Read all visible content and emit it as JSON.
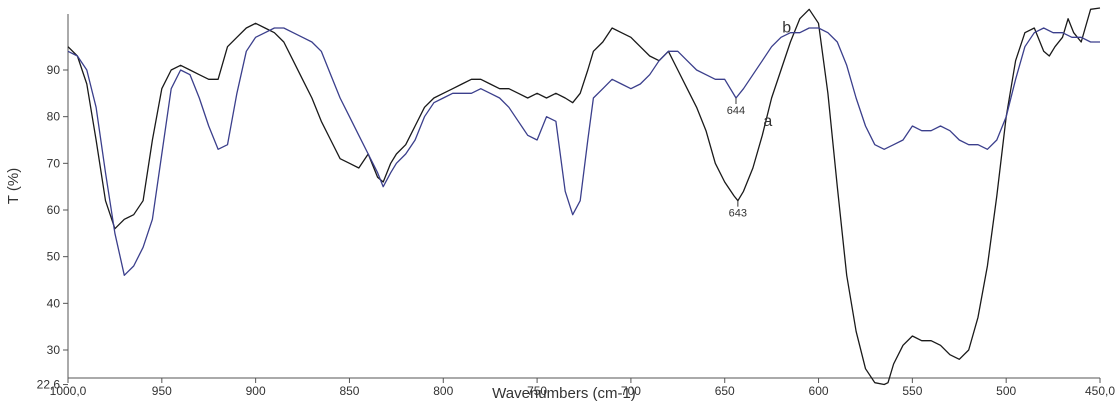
{
  "chart_data": {
    "type": "line",
    "title": "",
    "xlabel": "Wavenumbers (cm-1)",
    "ylabel": "T (%)",
    "xlim": [
      1000,
      450
    ],
    "ylim": [
      22.6,
      100
    ],
    "x_ticks": [
      {
        "value": 1000,
        "label": "1000,0"
      },
      {
        "value": 950,
        "label": "950"
      },
      {
        "value": 900,
        "label": "900"
      },
      {
        "value": 850,
        "label": "850"
      },
      {
        "value": 800,
        "label": "800"
      },
      {
        "value": 750,
        "label": "750"
      },
      {
        "value": 700,
        "label": "700"
      },
      {
        "value": 650,
        "label": "650"
      },
      {
        "value": 600,
        "label": "600"
      },
      {
        "value": 550,
        "label": "550"
      },
      {
        "value": 500,
        "label": "500"
      },
      {
        "value": 450,
        "label": "450,0"
      }
    ],
    "y_ticks": [
      {
        "value": 22.6,
        "label": "22,6"
      },
      {
        "value": 30,
        "label": "30"
      },
      {
        "value": 40,
        "label": "40"
      },
      {
        "value": 50,
        "label": "50"
      },
      {
        "value": 60,
        "label": "60"
      },
      {
        "value": 70,
        "label": "70"
      },
      {
        "value": 80,
        "label": "80"
      },
      {
        "value": 90,
        "label": "90"
      }
    ],
    "series": [
      {
        "name": "a",
        "color": "#1a1a1a",
        "x": [
          1000,
          995,
          990,
          985,
          980,
          975,
          970,
          965,
          960,
          955,
          950,
          945,
          940,
          935,
          930,
          925,
          920,
          915,
          910,
          905,
          900,
          895,
          890,
          885,
          880,
          875,
          870,
          865,
          860,
          855,
          850,
          845,
          840,
          835,
          832,
          828,
          825,
          820,
          815,
          810,
          805,
          800,
          795,
          790,
          785,
          780,
          775,
          770,
          765,
          760,
          755,
          750,
          745,
          740,
          735,
          731,
          727,
          723,
          720,
          715,
          710,
          705,
          700,
          695,
          690,
          685,
          680,
          675,
          670,
          665,
          660,
          655,
          650,
          645,
          643,
          640,
          635,
          630,
          625,
          620,
          615,
          610,
          605,
          600,
          595,
          590,
          585,
          580,
          575,
          570,
          565,
          563,
          560,
          555,
          550,
          545,
          540,
          535,
          530,
          525,
          520,
          515,
          510,
          505,
          500,
          495,
          490,
          485,
          480,
          477,
          474,
          470,
          467,
          464,
          460,
          455,
          450
        ],
        "y": [
          95,
          93,
          87,
          75,
          62,
          56,
          58,
          59,
          62,
          75,
          86,
          90,
          91,
          90,
          89,
          88,
          88,
          95,
          97,
          99,
          100,
          99,
          98,
          96,
          92,
          88,
          84,
          79,
          75,
          71,
          70,
          69,
          72,
          67,
          66,
          70,
          72,
          74,
          78,
          82,
          84,
          85,
          86,
          87,
          88,
          88,
          87,
          86,
          86,
          85,
          84,
          85,
          84,
          85,
          84,
          83,
          85,
          90,
          94,
          96,
          99,
          98,
          97,
          95,
          93,
          92,
          94,
          90,
          86,
          82,
          77,
          70,
          66,
          63,
          62,
          64,
          69,
          76,
          84,
          90,
          96,
          101,
          103,
          100,
          85,
          65,
          46,
          34,
          26,
          23,
          22.6,
          23,
          27,
          31,
          33,
          32,
          32,
          31,
          29,
          28,
          30,
          37,
          48,
          63,
          80,
          92,
          98,
          99,
          94,
          93,
          95,
          97,
          101,
          98,
          96,
          103,
          104
        ]
      },
      {
        "name": "b",
        "color": "#3b3f8c",
        "x": [
          1000,
          995,
          990,
          985,
          980,
          975,
          970,
          965,
          960,
          955,
          950,
          945,
          940,
          935,
          930,
          925,
          920,
          915,
          910,
          905,
          900,
          895,
          890,
          885,
          880,
          875,
          870,
          865,
          860,
          855,
          850,
          845,
          840,
          835,
          832,
          828,
          825,
          820,
          815,
          810,
          805,
          800,
          795,
          790,
          785,
          780,
          775,
          770,
          765,
          760,
          755,
          750,
          745,
          740,
          735,
          731,
          727,
          723,
          720,
          715,
          710,
          705,
          700,
          695,
          690,
          685,
          680,
          675,
          670,
          665,
          660,
          655,
          650,
          644,
          640,
          635,
          630,
          625,
          620,
          615,
          610,
          605,
          600,
          595,
          590,
          585,
          580,
          575,
          570,
          565,
          560,
          555,
          550,
          545,
          540,
          535,
          530,
          525,
          520,
          515,
          510,
          505,
          500,
          495,
          490,
          485,
          480,
          475,
          470,
          465,
          460,
          455,
          450
        ],
        "y": [
          94,
          93,
          90,
          82,
          68,
          55,
          46,
          48,
          52,
          58,
          72,
          86,
          90,
          89,
          84,
          78,
          73,
          74,
          85,
          94,
          97,
          98,
          99,
          99,
          98,
          97,
          96,
          94,
          89,
          84,
          80,
          76,
          72,
          68,
          65,
          68,
          70,
          72,
          75,
          80,
          83,
          84,
          85,
          85,
          85,
          86,
          85,
          84,
          82,
          79,
          76,
          75,
          80,
          79,
          64,
          59,
          62,
          75,
          84,
          86,
          88,
          87,
          86,
          87,
          89,
          92,
          94,
          94,
          92,
          90,
          89,
          88,
          88,
          84,
          86,
          89,
          92,
          95,
          97,
          98,
          98,
          99,
          99,
          98,
          96,
          91,
          84,
          78,
          74,
          73,
          74,
          75,
          78,
          77,
          77,
          78,
          77,
          75,
          74,
          74,
          73,
          75,
          80,
          88,
          95,
          98,
          99,
          98,
          98,
          97,
          97,
          96,
          96
        ]
      }
    ],
    "annotations": [
      {
        "text": "644",
        "x": 644,
        "y": 84
      },
      {
        "text": "643",
        "x": 643,
        "y": 62
      }
    ],
    "curve_labels": [
      {
        "text": "a",
        "x": 627,
        "y": 78
      },
      {
        "text": "b",
        "x": 617,
        "y": 98
      }
    ],
    "grid": false,
    "legend": "none"
  }
}
